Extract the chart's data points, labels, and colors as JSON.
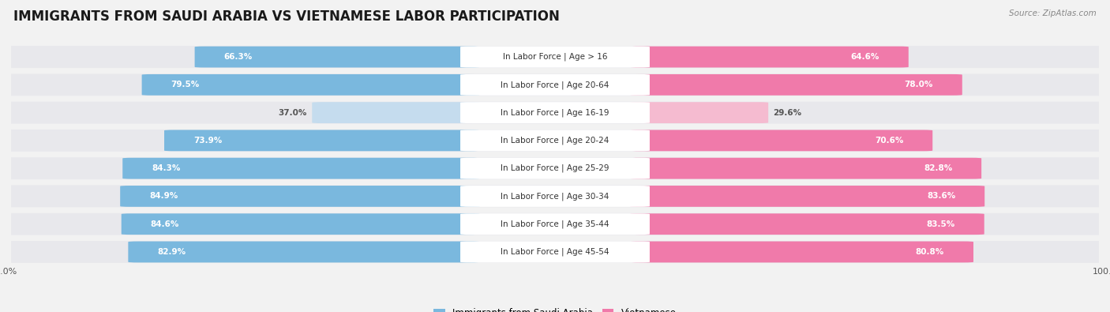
{
  "title": "IMMIGRANTS FROM SAUDI ARABIA VS VIETNAMESE LABOR PARTICIPATION",
  "source": "Source: ZipAtlas.com",
  "categories": [
    "In Labor Force | Age > 16",
    "In Labor Force | Age 20-64",
    "In Labor Force | Age 16-19",
    "In Labor Force | Age 20-24",
    "In Labor Force | Age 25-29",
    "In Labor Force | Age 30-34",
    "In Labor Force | Age 35-44",
    "In Labor Force | Age 45-54"
  ],
  "saudi_values": [
    66.3,
    79.5,
    37.0,
    73.9,
    84.3,
    84.9,
    84.6,
    82.9
  ],
  "vietnamese_values": [
    64.6,
    78.0,
    29.6,
    70.6,
    82.8,
    83.6,
    83.5,
    80.8
  ],
  "saudi_color_strong": "#7ab8de",
  "saudi_color_weak": "#c5dcee",
  "vietnamese_color_strong": "#f07aaa",
  "vietnamese_color_weak": "#f5bbd0",
  "row_bg_color": "#e8e8ec",
  "background_color": "#f2f2f2",
  "center_box_color": "#ffffff",
  "title_fontsize": 12,
  "label_fontsize": 7.5,
  "value_fontsize": 7.5,
  "threshold": 50,
  "max_value": 100.0,
  "legend_label_saudi": "Immigrants from Saudi Arabia",
  "legend_label_viet": "Vietnamese"
}
